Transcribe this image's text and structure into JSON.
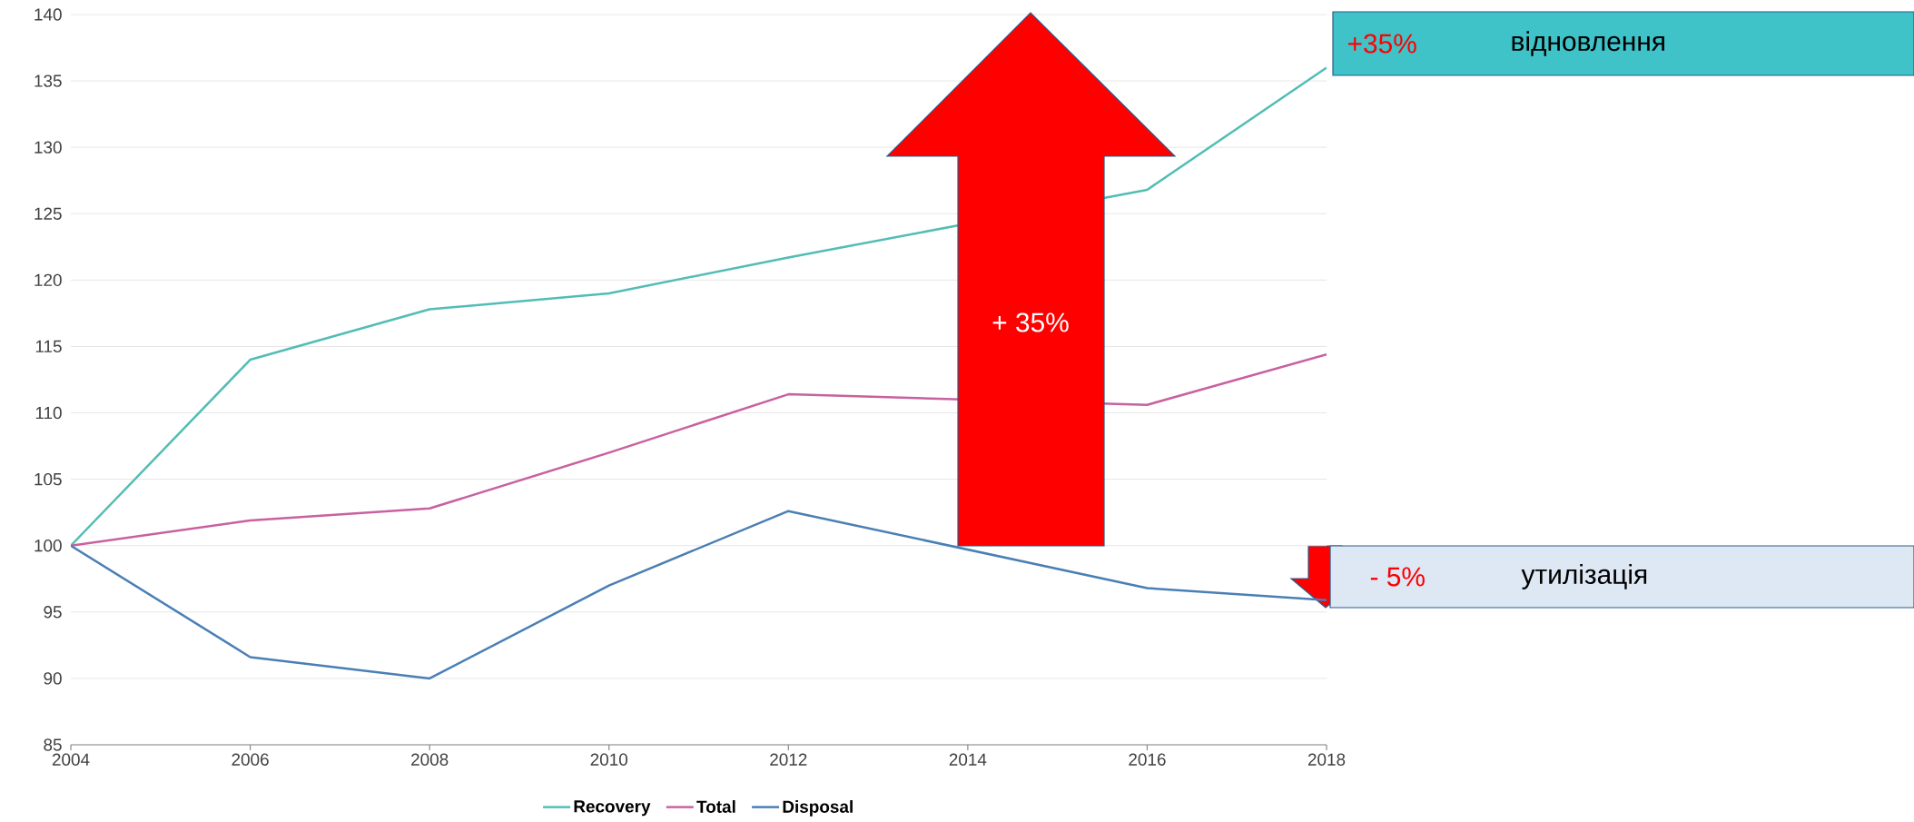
{
  "chart_data": {
    "type": "line",
    "x": [
      2004,
      2006,
      2008,
      2010,
      2012,
      2014,
      2016,
      2018
    ],
    "series": [
      {
        "name": "Recovery",
        "color": "#52bdb5",
        "values": [
          100,
          114.0,
          117.8,
          119.0,
          121.7,
          null,
          126.8,
          136.0
        ]
      },
      {
        "name": "Total",
        "color": "#c8619f",
        "values": [
          100,
          101.9,
          102.8,
          107.0,
          111.4,
          null,
          110.6,
          114.4
        ]
      },
      {
        "name": "Disposal",
        "color": "#4a7fb5",
        "values": [
          100,
          91.6,
          90.0,
          97.0,
          102.6,
          null,
          96.8,
          95.9
        ]
      }
    ],
    "xlim": [
      2004,
      2018
    ],
    "xticks": [
      2004,
      2006,
      2008,
      2010,
      2012,
      2014,
      2016,
      2018
    ],
    "ylim": [
      85,
      140
    ],
    "yticks": [
      85,
      90,
      95,
      100,
      105,
      110,
      115,
      120,
      125,
      130,
      135,
      140
    ],
    "grid": "y",
    "legend": "bottom",
    "marker": "none",
    "line_style": "solid",
    "annotations": [
      "+ 35%",
      "+35%",
      "відновлення",
      "- 5%",
      "утилізація"
    ]
  }
}
